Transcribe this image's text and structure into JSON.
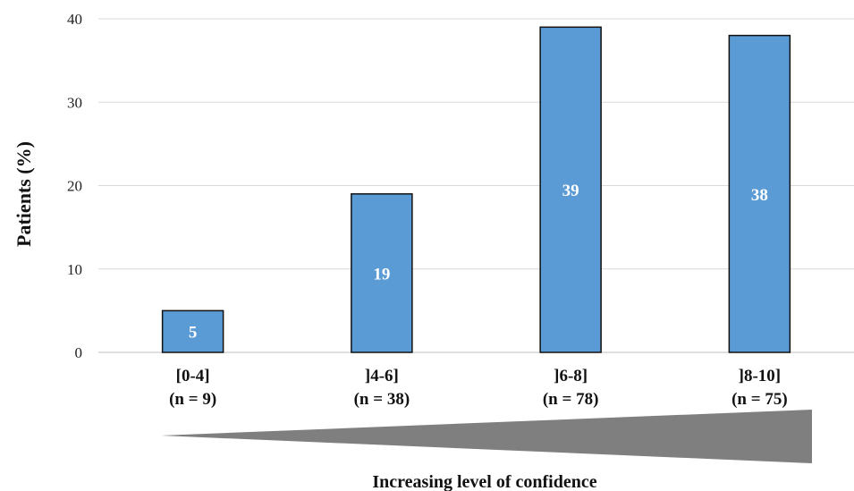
{
  "chart_data": {
    "type": "bar",
    "categories": [
      "[0-4]",
      "]4-6]",
      "]6-8]",
      "]8-10]"
    ],
    "category_counts": [
      "(n = 9)",
      "(n = 38)",
      "(n = 78)",
      "(n = 75)"
    ],
    "values": [
      5,
      19,
      39,
      38
    ],
    "data_labels": [
      "5",
      "19",
      "39",
      "38"
    ],
    "ylabel": "Patients (%)",
    "xlabel": "Increasing level of confidence",
    "ylim": [
      0,
      40
    ],
    "yticks": [
      0,
      10,
      20,
      30,
      40
    ],
    "grid": true,
    "legend": "none",
    "bar_color": "#5b9bd5",
    "bar_edge_color": "#111111",
    "wedge_color": "#7f7f7f"
  }
}
